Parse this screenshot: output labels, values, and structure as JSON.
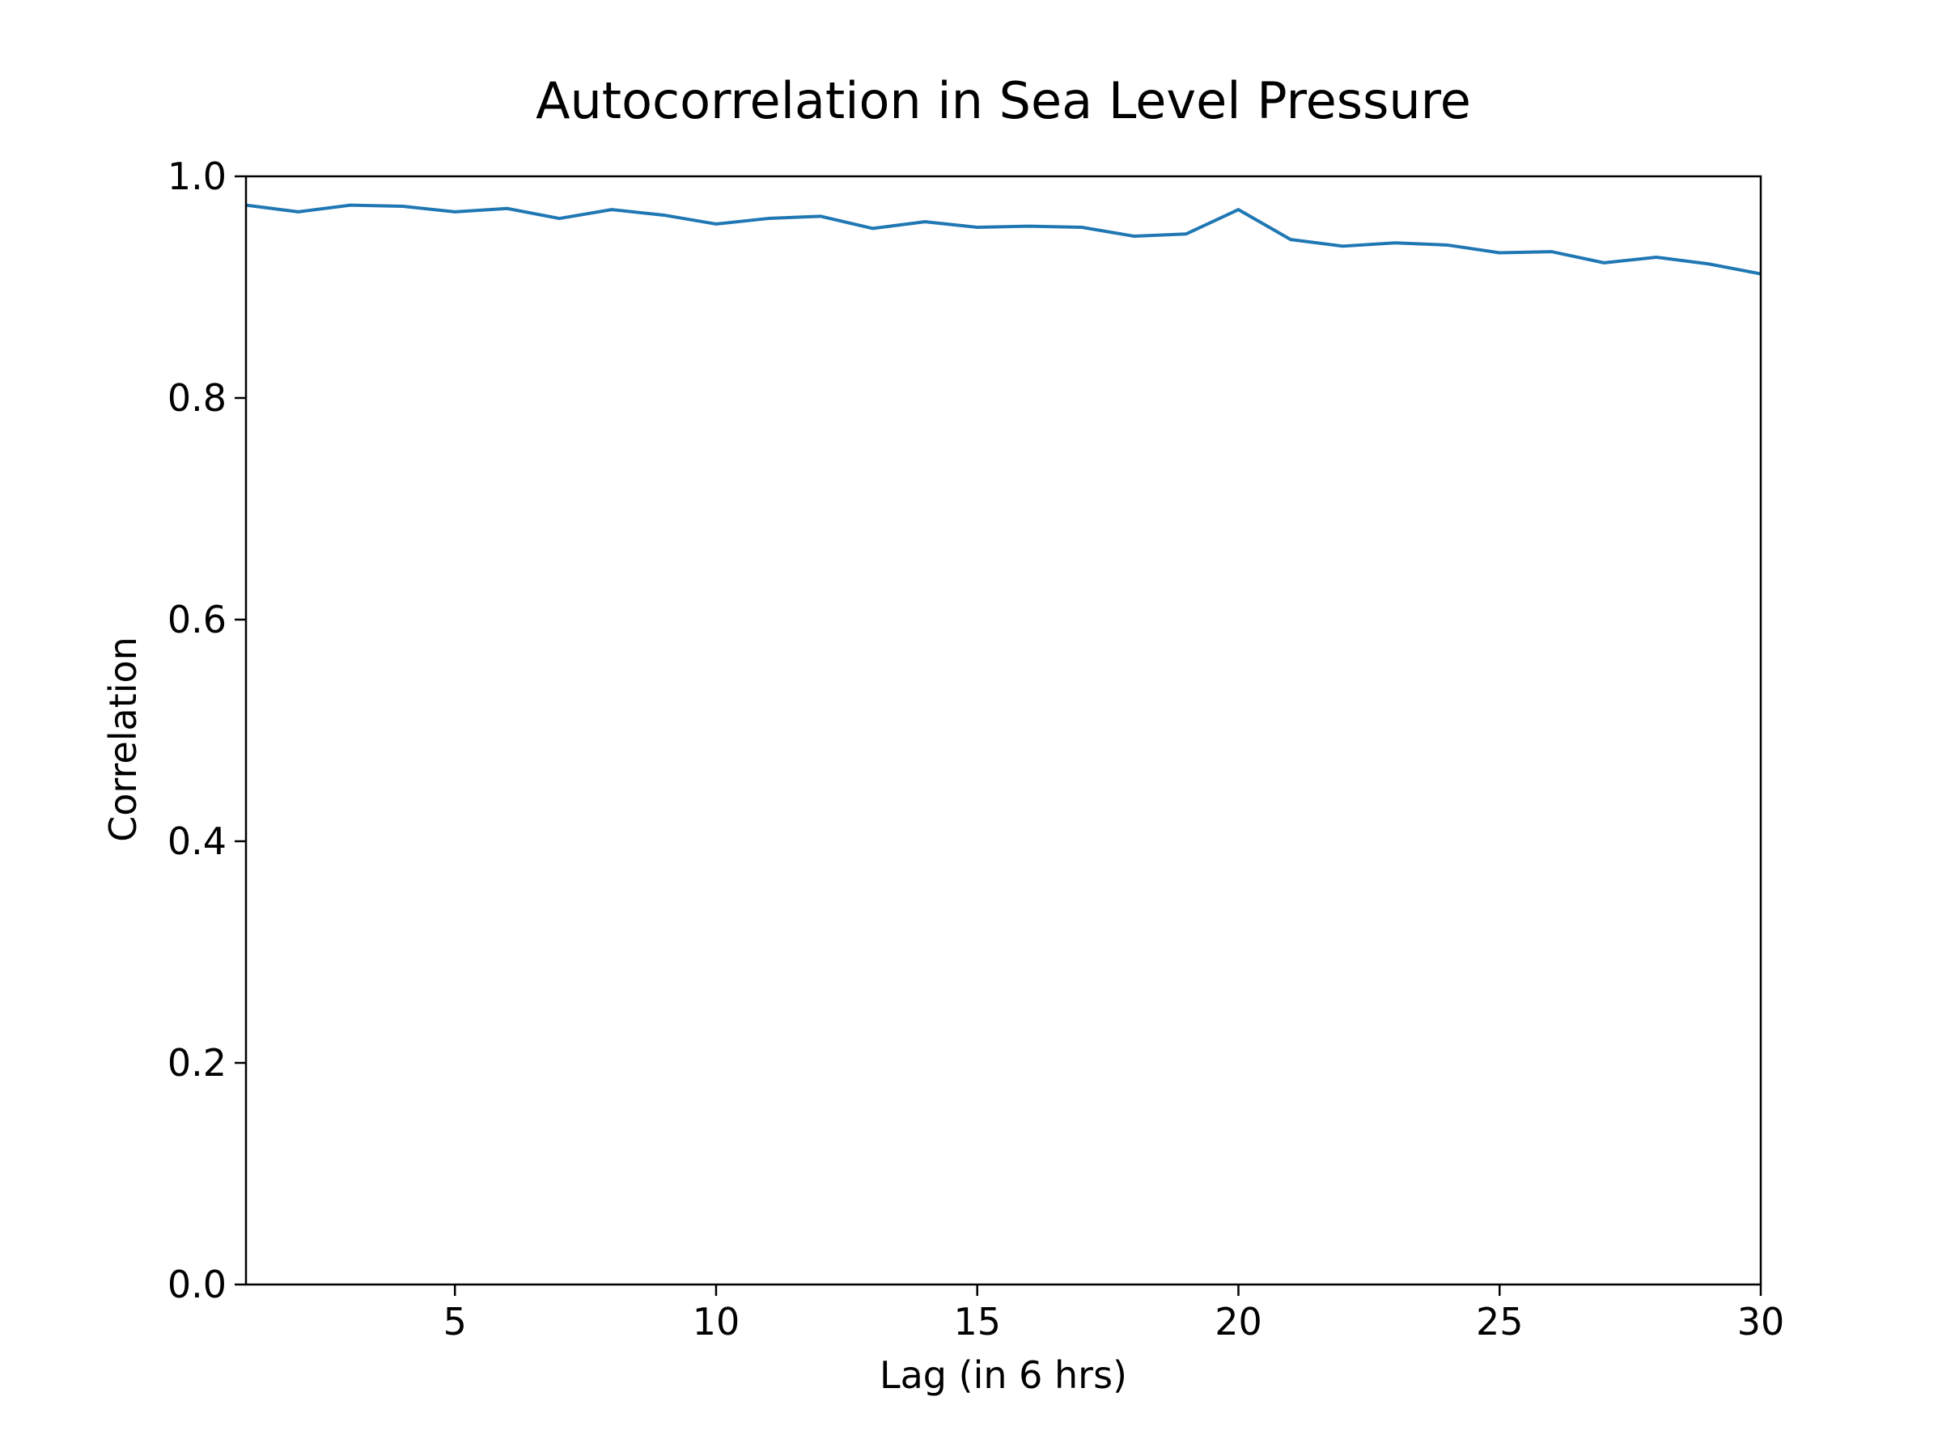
{
  "chart_data": {
    "type": "line",
    "title": "Autocorrelation in Sea Level Pressure",
    "xlabel": "Lag (in 6 hrs)",
    "ylabel": "Correlation",
    "xlim": [
      1,
      30
    ],
    "ylim": [
      0.0,
      1.0
    ],
    "xticks": [
      5,
      10,
      15,
      20,
      25,
      30
    ],
    "xtick_labels": [
      "5",
      "10",
      "15",
      "20",
      "25",
      "30"
    ],
    "yticks": [
      0.0,
      0.2,
      0.4,
      0.6,
      0.8,
      1.0
    ],
    "ytick_labels": [
      "0.0",
      "0.2",
      "0.4",
      "0.6",
      "0.8",
      "1.0"
    ],
    "grid": false,
    "legend": "none",
    "series": [
      {
        "color": "#1f77b4",
        "x": [
          1,
          2,
          3,
          4,
          5,
          6,
          7,
          8,
          9,
          10,
          11,
          12,
          13,
          14,
          15,
          16,
          17,
          18,
          19,
          20,
          21,
          22,
          23,
          24,
          25,
          26,
          27,
          28,
          29,
          30
        ],
        "values": [
          0.974,
          0.968,
          0.974,
          0.973,
          0.968,
          0.971,
          0.962,
          0.97,
          0.965,
          0.957,
          0.962,
          0.964,
          0.953,
          0.959,
          0.954,
          0.955,
          0.954,
          0.946,
          0.948,
          0.97,
          0.943,
          0.937,
          0.94,
          0.938,
          0.931,
          0.932,
          0.922,
          0.927,
          0.921,
          0.912
        ]
      }
    ]
  }
}
